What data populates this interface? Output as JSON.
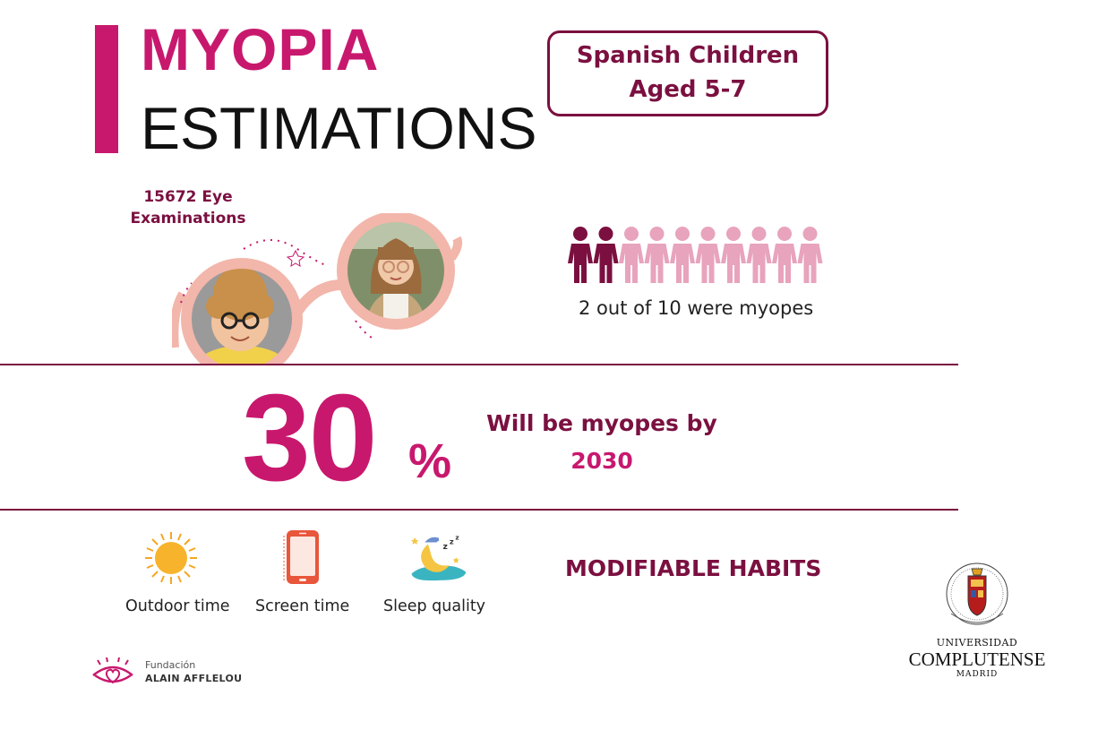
{
  "title": {
    "line1": "MYOPIA",
    "line2": "ESTIMATIONS"
  },
  "group": {
    "line1": "Spanish Children",
    "line2": "Aged 5-7"
  },
  "examinations": {
    "line1": "15672 Eye",
    "line2": "Examinations"
  },
  "prevalence": {
    "caption": "2 out of 10 were myopes",
    "myopes": 2,
    "total": 10
  },
  "projection": {
    "value": "30",
    "unit": "%",
    "text": "Will be myopes by",
    "year": "2030"
  },
  "habits": {
    "heading": "MODIFIABLE HABITS",
    "items": [
      {
        "label": "Outdoor time",
        "icon": "sun-icon"
      },
      {
        "label": "Screen time",
        "icon": "phone-icon"
      },
      {
        "label": "Sleep quality",
        "icon": "moon-icon"
      }
    ]
  },
  "logos": {
    "afflelou": {
      "small": "Fundación",
      "name": "ALAIN AFFLELOU"
    },
    "university": {
      "line1": "UNIVERSIDAD",
      "line2": "COMPLUTENSE",
      "line3": "MADRID"
    }
  },
  "colors": {
    "accent": "#c8186e",
    "dark_accent": "#7b1040",
    "light_accent": "#e8a3bd"
  }
}
